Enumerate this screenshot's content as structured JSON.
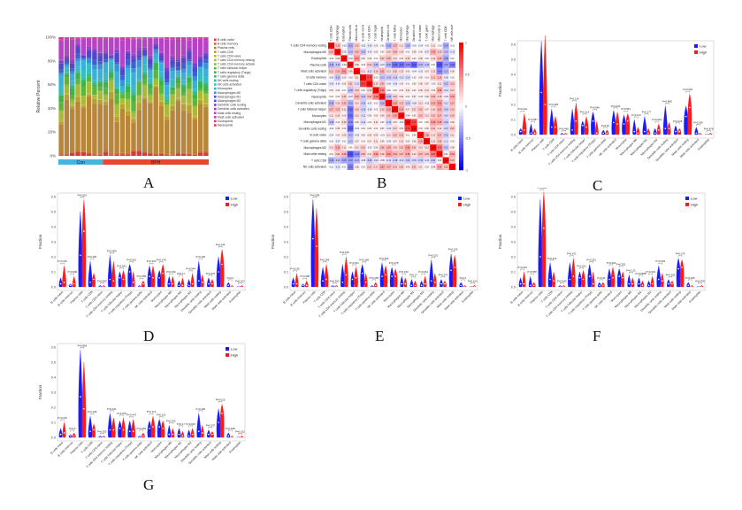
{
  "letters": [
    "A",
    "B",
    "C",
    "D",
    "E",
    "F",
    "G"
  ],
  "panelA": {
    "ylabel": "Relative Percent",
    "yticks": [
      "0%",
      "20%",
      "40%",
      "60%",
      "80%",
      "100%"
    ],
    "groups": [
      {
        "name": "Con",
        "count": 8,
        "color": "#45b5dc"
      },
      {
        "name": "BPH",
        "count": 19,
        "color": "#e8472f"
      }
    ],
    "cells": [
      {
        "name": "B cells naive",
        "color": "#d43a3a",
        "base": 2
      },
      {
        "name": "B cells memory",
        "color": "#c96a2e",
        "base": 1
      },
      {
        "name": "Plasma cells",
        "color": "#b8863a",
        "base": 36
      },
      {
        "name": "T cells CD8",
        "color": "#b9a030",
        "base": 4
      },
      {
        "name": "T cells CD4 naive",
        "color": "#c4b43c",
        "base": 1
      },
      {
        "name": "T cells CD4 memory resting",
        "color": "#a7bb38",
        "base": 7
      },
      {
        "name": "T cells CD4 memory activated",
        "color": "#8dbb3a",
        "base": 1
      },
      {
        "name": "T cells follicular helper",
        "color": "#5db53c",
        "base": 5
      },
      {
        "name": "T cells regulatory (Tregs)",
        "color": "#3fb24a",
        "base": 4
      },
      {
        "name": "T cells gamma delta",
        "color": "#35b586",
        "base": 1
      },
      {
        "name": "NK cells resting",
        "color": "#35b7a8",
        "base": 1
      },
      {
        "name": "NK cells activated",
        "color": "#39bbc4",
        "base": 5
      },
      {
        "name": "Monocytes",
        "color": "#3ab0d8",
        "base": 6
      },
      {
        "name": "Macrophages M0",
        "color": "#3a92d6",
        "base": 3
      },
      {
        "name": "Macrophages M1",
        "color": "#3d62cf",
        "base": 3
      },
      {
        "name": "Macrophages M2",
        "color": "#5247c9",
        "base": 4
      },
      {
        "name": "Dendritic cells resting",
        "color": "#7a42c6",
        "base": 2
      },
      {
        "name": "Dendritic cells activated",
        "color": "#9b3ec6",
        "base": 1
      },
      {
        "name": "Mast cells resting",
        "color": "#b543c4",
        "base": 13
      },
      {
        "name": "Mast cells activated",
        "color": "#c83fb0",
        "base": 1
      },
      {
        "name": "Eosinophils",
        "color": "#d03d8c",
        "base": 0.5
      },
      {
        "name": "Neutrophils",
        "color": "#d83a63",
        "base": 0.5
      }
    ]
  },
  "panelB": {
    "labels": [
      "T cells CD4 memory resting",
      "Macrophages M0",
      "Eosinophils",
      "Plasma cells",
      "Mast cells activated",
      "B cells memory",
      "T cells CD4 naive",
      "T cells regulatory (Tregs)",
      "Neutrophils",
      "Dendritic cells activated",
      "T cells follicular helper",
      "Monocytes",
      "Macrophages M1",
      "Dendritic cells resting",
      "B cells naive",
      "T cells gamma delta",
      "Macrophages M2",
      "Mast cells resting",
      "T cells CD8",
      "NK cells activated"
    ],
    "colorbar": [
      "1",
      "0.5",
      "0",
      "-0.5",
      "-1"
    ],
    "lower": [
      [
        0.26
      ],
      [
        -0.02,
        0.08
      ],
      [
        -0.31,
        -0.23,
        -0.04
      ],
      [
        0.21,
        0.25,
        0.41,
        0.09
      ],
      [
        -0.05,
        -0.23,
        0.05,
        -0.02,
        0.11
      ],
      [
        -0.09,
        -0.06,
        0.06,
        0.21,
        -0.12,
        0.75
      ],
      [
        0.05,
        0.05,
        0.01,
        -0.25,
        0.18,
        0.02,
        0.15
      ],
      [
        0.02,
        0.03,
        0.2,
        -0.07,
        0.31,
        -0.21,
        0.24,
        0.48
      ],
      [
        -0.3,
        0.16,
        0.25,
        -0.31,
        0.13,
        -0.2,
        -0.05,
        0.02,
        -0.26
      ],
      [
        0.27,
        0.25,
        0.11,
        -0.56,
        0.18,
        -0.18,
        -0.08,
        0.03,
        0.18,
        0.33
      ],
      [
        0.11,
        0.14,
        0.06,
        -0.57,
        0.13,
        -0.12,
        0.06,
        0.05,
        0.09,
        0.22,
        0.32
      ],
      [
        -0.26,
        0.03,
        0.16,
        -0.45,
        0.06,
        -0.14,
        0.02,
        0.11,
        0.03,
        -0.19,
        0.07,
        -0.04
      ],
      [
        -0.02,
        0.08,
        0.03,
        -0.63,
        -0.04,
        0.03,
        0.05,
        0.03,
        0.07,
        -0.08,
        0.17,
        0.05,
        0.72
      ],
      [
        -0.04,
        0.05,
        0.09,
        -0.27,
        -0.05,
        0.05,
        0.08,
        0.09,
        -0.03,
        0.12,
        0.22,
        0.23,
        0.01,
        0.04
      ],
      [
        -0.02,
        -0.07,
        0.02,
        -0.22,
        0.07,
        0.03,
        0.07,
        0.11,
        0.06,
        -0.05,
        0.07,
        0.12,
        0.05,
        0.06,
        0.28
      ],
      [
        0.11,
        0.33,
        0.12,
        0.0,
        0.13,
        0.21,
        -0.03,
        0.06,
        0.26,
        0.29,
        0.16,
        0.22,
        0.38,
        0.21,
        0.13,
        0.12
      ],
      [
        -0.01,
        0.2,
        0.28,
        -0.7,
        -0.45,
        0.25,
        0.11,
        0.36,
        0.18,
        0.41,
        0.31,
        0.27,
        0.35,
        0.12,
        0.27,
        0.23,
        0.53
      ],
      [
        -0.34,
        -0.23,
        -0.35,
        -0.37,
        -0.27,
        -0.08,
        -0.22,
        -0.12,
        -0.06,
        -0.12,
        -0.18,
        -0.14,
        -0.2,
        -0.15,
        -0.19,
        -0.11,
        -0.21,
        0.04
      ],
      [
        -0.01,
        -0.1,
        0.01,
        -0.51,
        0.08,
        0.02,
        0.21,
        0.17,
        0.33,
        0.27,
        0.21,
        0.2,
        0.08,
        0.21,
        0.11,
        0.03,
        0.08,
        0.34,
        0.23
      ]
    ]
  },
  "violin": {
    "cells": [
      "B cells naive",
      "B cells memory",
      "Plasma cells",
      "T cells CD8",
      "T cells CD4 naive",
      "T cells CD4 memory resting",
      "T cells follicular helper",
      "T cells regulatory (Tregs)",
      "T cells gamma delta",
      "NK cells activated",
      "Monocytes",
      "Macrophages M0",
      "Macrophages M1",
      "Macrophages M2",
      "Dendritic cells resting",
      "Dendritic cells activated",
      "Mast cells resting",
      "Mast cells activated",
      "Eosinophils"
    ],
    "yticks": [
      "0.0",
      "0.1",
      "0.2",
      "0.3",
      "0.4",
      "0.5",
      "0.6"
    ],
    "ylabel": "Fraction",
    "legend": [
      {
        "label": "Low",
        "color": "#1a1aff"
      },
      {
        "label": "High",
        "color": "#ff1a1a"
      }
    ],
    "panels": [
      {
        "letter_index": 2,
        "p": [
          "P=0.241",
          "P=0.587",
          "P=0.756",
          "P=0.283",
          "P=0.460",
          "P=0.114",
          "P=0.113",
          "P=0.046",
          "P=0.40",
          "P=0.026",
          "P=0.561",
          "P=0.113",
          "P=0.177",
          "P=0.019",
          "P=0.808",
          "P=0.325",
          "P=0.029",
          "P=0.185",
          "P=0.878"
        ],
        "values": [
          [
            0.02,
            0.04,
            0.03,
            0.14
          ],
          [
            0.01,
            0.07,
            0.01,
            0.04
          ],
          [
            0.28,
            0.62,
            0.2,
            0.66
          ],
          [
            0.05,
            0.17,
            0.05,
            0.12
          ],
          [
            0,
            0.01,
            0,
            0.01
          ],
          [
            0.03,
            0.17,
            0.09,
            0.21
          ],
          [
            0.06,
            0.09,
            0.05,
            0.12
          ],
          [
            0.09,
            0.15,
            0.01,
            0.09
          ],
          [
            0.01,
            0.03,
            0.01,
            0.03
          ],
          [
            0.08,
            0.16,
            0.07,
            0.15
          ],
          [
            0.07,
            0.13,
            0.09,
            0.14
          ],
          [
            0.02,
            0.1,
            0.01,
            0.05
          ],
          [
            0.02,
            0.12,
            0.01,
            0.04
          ],
          [
            0.01,
            0.04,
            0.03,
            0.07
          ],
          [
            0.04,
            0.19,
            0.04,
            0.08
          ],
          [
            0.02,
            0.06,
            0.02,
            0.04
          ],
          [
            0.12,
            0.19,
            0.18,
            0.27
          ],
          [
            0.01,
            0.05,
            0,
            0.01
          ],
          [
            0,
            0,
            0,
            0.01
          ]
        ]
      },
      {
        "letter_index": 3,
        "p": [
          "P=0.152",
          "P=0.608",
          "P=0.016",
          "P=0.284",
          "P=0.590",
          "P=0.409",
          "P=0.541",
          "P=0.019",
          "P=0.255",
          "P=0.203",
          "P=0.278",
          "P=0.430",
          "P=0.17",
          "P=0.044",
          "P=0.100",
          "P=0.337",
          "P=0.044",
          "P=0.3",
          "P=0.102"
        ],
        "values": [
          [
            0.02,
            0.06,
            0.03,
            0.14
          ],
          [
            0.01,
            0.02,
            0.02,
            0.07
          ],
          [
            0.21,
            0.5,
            0.37,
            0.58
          ],
          [
            0.03,
            0.17,
            0.05,
            0.09
          ],
          [
            0,
            0.01,
            0,
            0.01
          ],
          [
            0.05,
            0.21,
            0.04,
            0.17
          ],
          [
            0.06,
            0.1,
            0.05,
            0.11
          ],
          [
            0.1,
            0.15,
            0.03,
            0.1
          ],
          [
            0,
            0.01,
            0.02,
            0.04
          ],
          [
            0.07,
            0.14,
            0.06,
            0.14
          ],
          [
            0.06,
            0.11,
            0.09,
            0.15
          ],
          [
            0.02,
            0.07,
            0.02,
            0.07
          ],
          [
            0.01,
            0.04,
            0.01,
            0.06
          ],
          [
            0.01,
            0.05,
            0.02,
            0.09
          ],
          [
            0.04,
            0.17,
            0.03,
            0.08
          ],
          [
            0.02,
            0.06,
            0.02,
            0.05
          ],
          [
            0.1,
            0.2,
            0.15,
            0.25
          ],
          [
            0.01,
            0.03,
            0,
            0.01
          ],
          [
            0,
            0,
            0,
            0.01
          ]
        ]
      },
      {
        "letter_index": 4,
        "p": [
          "P=0.152",
          "P=0.608",
          "P=0.008",
          "P=0.284",
          "P=0.590",
          "P=0.105",
          "P=0.541",
          "P=0.168",
          "P=0.255",
          "P=0.203",
          "P=0.278",
          "P=0.430",
          "P=0.17",
          "P=0.044",
          "P=0.222",
          "P=0.337",
          "P=0.126",
          "P=0.3",
          "P=0.102"
        ],
        "values": [
          [
            0.02,
            0.06,
            0.02,
            0.09
          ],
          [
            0.01,
            0.02,
            0.01,
            0.04
          ],
          [
            0.32,
            0.58,
            0.27,
            0.52
          ],
          [
            0.04,
            0.13,
            0.05,
            0.15
          ],
          [
            0,
            0.01,
            0,
            0.01
          ],
          [
            0.03,
            0.15,
            0.08,
            0.2
          ],
          [
            0.05,
            0.1,
            0.06,
            0.13
          ],
          [
            0.09,
            0.15,
            0.03,
            0.09
          ],
          [
            0,
            0.01,
            0.01,
            0.03
          ],
          [
            0.07,
            0.16,
            0.08,
            0.14
          ],
          [
            0.07,
            0.13,
            0.07,
            0.12
          ],
          [
            0.02,
            0.07,
            0.02,
            0.06
          ],
          [
            0.01,
            0.05,
            0.01,
            0.04
          ],
          [
            0.01,
            0.04,
            0.02,
            0.07
          ],
          [
            0.04,
            0.18,
            0.03,
            0.09
          ],
          [
            0.02,
            0.05,
            0.02,
            0.04
          ],
          [
            0.11,
            0.22,
            0.13,
            0.21
          ],
          [
            0.01,
            0.03,
            0,
            0.01
          ],
          [
            0,
            0,
            0,
            0.01
          ]
        ]
      },
      {
        "letter_index": 5,
        "p": [
          "P=0.434",
          "P=0.587",
          "P=0.068",
          "P=0.219",
          "P=0.460",
          "P=0.671",
          "P=0.221",
          "P=0.201",
          "P=0.40",
          "P=0.293",
          "P=0.351",
          "P=0.113",
          "P=0.0698",
          "P=0.019",
          "P=0.463",
          "P=0.325",
          "P=0.179",
          "P=0.185",
          "P=0.878"
        ],
        "values": [
          [
            0.02,
            0.06,
            0.02,
            0.1
          ],
          [
            0.01,
            0.07,
            0.01,
            0.03
          ],
          [
            0.2,
            0.58,
            0.39,
            0.63
          ],
          [
            0.05,
            0.16,
            0.04,
            0.1
          ],
          [
            0,
            0.01,
            0,
            0.01
          ],
          [
            0.05,
            0.16,
            0.07,
            0.19
          ],
          [
            0.06,
            0.1,
            0.05,
            0.11
          ],
          [
            0.07,
            0.15,
            0.02,
            0.1
          ],
          [
            0.01,
            0.03,
            0.01,
            0.03
          ],
          [
            0.05,
            0.12,
            0.06,
            0.13
          ],
          [
            0.07,
            0.12,
            0.06,
            0.1
          ],
          [
            0.02,
            0.08,
            0.02,
            0.06
          ],
          [
            0.02,
            0.06,
            0.01,
            0.04
          ],
          [
            0.01,
            0.04,
            0.02,
            0.07
          ],
          [
            0.05,
            0.14,
            0.04,
            0.09
          ],
          [
            0.02,
            0.05,
            0.02,
            0.04
          ],
          [
            0.12,
            0.19,
            0.13,
            0.18
          ],
          [
            0.01,
            0.03,
            0,
            0.01
          ],
          [
            0,
            0,
            0,
            0.01
          ]
        ]
      },
      {
        "letter_index": 6,
        "p": [
          "P=0.152",
          "P=0.6",
          "P=0.866",
          "P=0.128",
          "P=0.555",
          "P=0.101",
          "P=0.078",
          "P=0.473",
          "P=0.255",
          "P=0.172",
          "P=0.110",
          "P=0.422",
          "P=0.17",
          "P=0.015",
          "P=0.100",
          "P=0.337",
          "P=0.015",
          "P=0.188",
          "P=0.102"
        ],
        "values": [
          [
            0.02,
            0.06,
            0.03,
            0.1
          ],
          [
            0.01,
            0.02,
            0.01,
            0.03
          ],
          [
            0.27,
            0.58,
            0.19,
            0.5
          ],
          [
            0.04,
            0.14,
            0.05,
            0.09
          ],
          [
            0,
            0.01,
            0,
            0.01
          ],
          [
            0.05,
            0.16,
            0.05,
            0.13
          ],
          [
            0.06,
            0.11,
            0.05,
            0.13
          ],
          [
            0.04,
            0.11,
            0.04,
            0.12
          ],
          [
            0,
            0.01,
            0.01,
            0.03
          ],
          [
            0.06,
            0.11,
            0.07,
            0.14
          ],
          [
            0.07,
            0.12,
            0.06,
            0.11
          ],
          [
            0.02,
            0.08,
            0.02,
            0.06
          ],
          [
            0.02,
            0.06,
            0.01,
            0.04
          ],
          [
            0.01,
            0.05,
            0.02,
            0.06
          ],
          [
            0.04,
            0.16,
            0.03,
            0.08
          ],
          [
            0.02,
            0.05,
            0.02,
            0.04
          ],
          [
            0.1,
            0.19,
            0.16,
            0.22
          ],
          [
            0.01,
            0.03,
            0,
            0.01
          ],
          [
            0,
            0,
            0,
            0.01
          ]
        ]
      }
    ]
  }
}
